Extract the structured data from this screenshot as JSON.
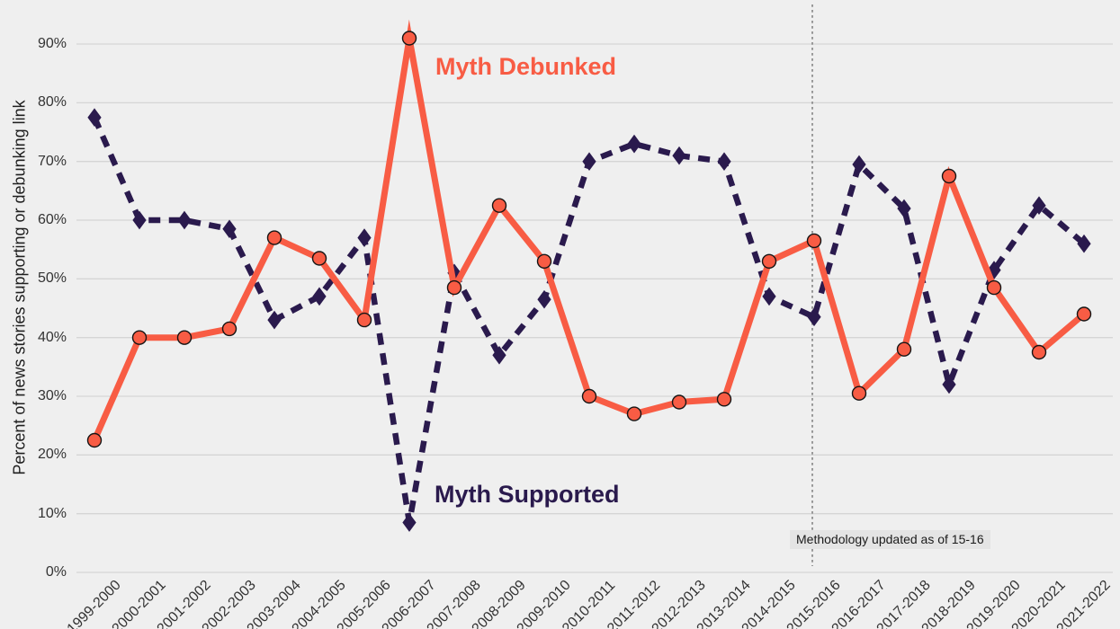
{
  "chart_data": {
    "type": "line",
    "title": "",
    "xlabel": "",
    "ylabel": "Percent of news stories supporting or debunking link",
    "categories": [
      "1999-2000",
      "2000-2001",
      "2001-2002",
      "2002-2003",
      "2003-2004",
      "2004-2005",
      "2005-2006",
      "2006-2007",
      "2007-2008",
      "2008-2009",
      "2009-2010",
      "2010-2011",
      "2011-2012",
      "2012-2013",
      "2013-2014",
      "2014-2015",
      "2015-2016",
      "2016-2017",
      "2017-2018",
      "2018-2019",
      "2019-2020",
      "2020-2021",
      "2021-2022"
    ],
    "series": [
      {
        "name": "Myth Debunked",
        "color": "#F85C44",
        "line_style": "solid",
        "marker": "circle",
        "values": [
          22.5,
          40,
          40,
          41.5,
          57,
          53.5,
          43,
          91,
          48.5,
          62.5,
          53,
          30,
          27,
          29,
          29.5,
          53,
          56.5,
          30.5,
          38,
          67.5,
          48.5,
          37.5,
          44
        ]
      },
      {
        "name": "Myth Supported",
        "color": "#2A1A4D",
        "line_style": "dashed",
        "marker": "diamond",
        "values": [
          77.5,
          60,
          60,
          58.5,
          43,
          47,
          57,
          8.5,
          51,
          37,
          46.5,
          70,
          73,
          71,
          70,
          47,
          43.5,
          69.5,
          62,
          32,
          51.5,
          62.5,
          56
        ]
      }
    ],
    "ylim": [
      0,
      95
    ],
    "yticks_pct": [
      0,
      10,
      20,
      30,
      40,
      50,
      60,
      70,
      80,
      90
    ],
    "ytick_labels": [
      "0%",
      "10%",
      "20%",
      "30%",
      "40%",
      "50%",
      "60%",
      "70%",
      "80%",
      "90%"
    ],
    "grid": true,
    "legend": "inline-labels",
    "annotation": {
      "text": "Methodology updated as of 15-16",
      "at_category": "2015-2016"
    }
  },
  "colors": {
    "background": "#EFEFEF",
    "gridline": "#D5D5D5",
    "axis_text": "#333333",
    "annotation_line": "#999999",
    "annotation_bg": "#E4E4E4",
    "annotation_text": "#1B1B1B"
  }
}
